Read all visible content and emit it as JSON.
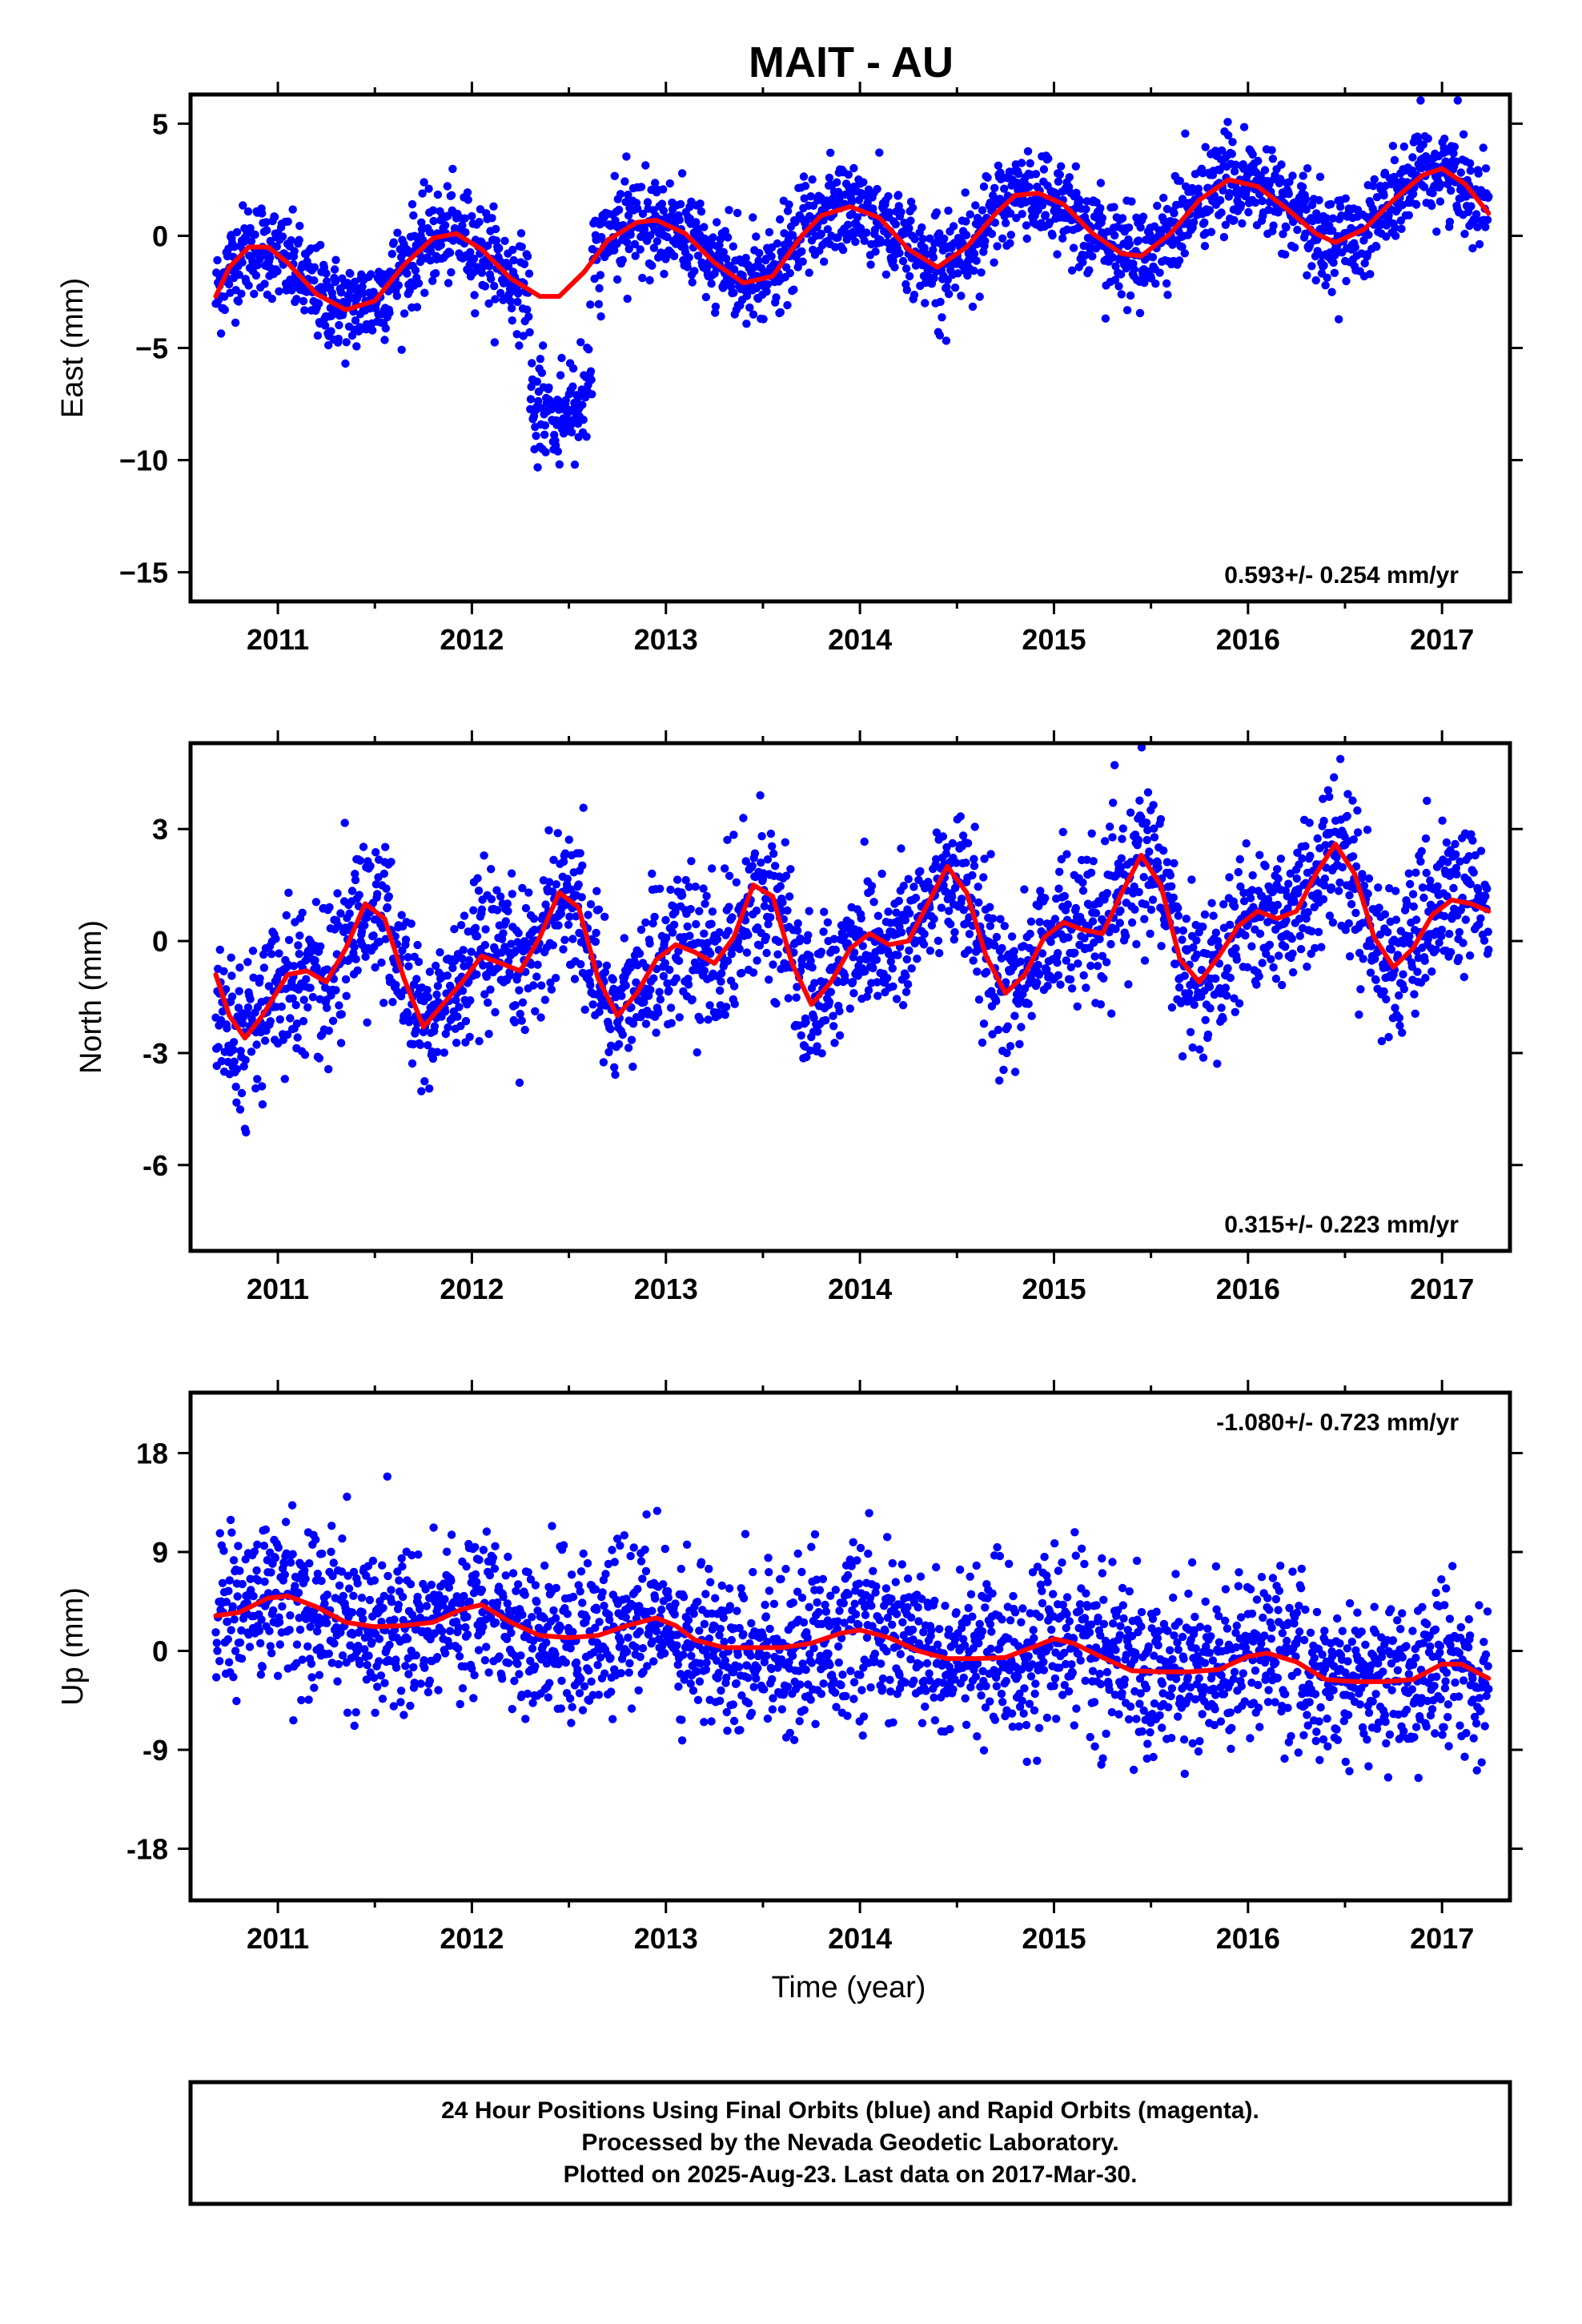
{
  "title": "MAIT - AU",
  "xlabel": "Time (year)",
  "caption": [
    "24 Hour Positions Using Final Orbits (blue) and Rapid Orbits (magenta).",
    "Processed by the Nevada Geodetic Laboratory.",
    "Plotted on 2025-Aug-23. Last data on 2017-Mar-30."
  ],
  "colors": {
    "points": "#0000ff",
    "model": "#ff0000",
    "frame": "#000000"
  },
  "chart_data": [
    {
      "type": "scatter",
      "ylabel": "East (mm)",
      "rate_label": "0.593+/- 0.254 mm/yr",
      "rate_position": "bottom-right",
      "xlim": [
        2010.55,
        2017.35
      ],
      "ylim": [
        -16.3,
        6.3
      ],
      "yticks": [
        5,
        0,
        -5,
        -10,
        -15
      ],
      "ytick_labels": [
        "5",
        "0",
        "−5",
        "−10",
        "−15"
      ],
      "xticks": [
        2011,
        2012,
        2013,
        2014,
        2015,
        2016,
        2017
      ],
      "series": [
        {
          "kind": "points",
          "values": "daily positions 2010.68 to 2017.24"
        },
        {
          "kind": "model",
          "x": [
            2010.68,
            2010.75,
            2010.85,
            2010.95,
            2011.05,
            2011.2,
            2011.35,
            2011.5,
            2011.65,
            2011.8,
            2011.92,
            2012.05,
            2012.2,
            2012.35,
            2012.45,
            2012.58,
            2012.7,
            2012.85,
            2012.95,
            2013.1,
            2013.25,
            2013.4,
            2013.55,
            2013.7,
            2013.8,
            2013.95,
            2014.1,
            2014.25,
            2014.4,
            2014.55,
            2014.7,
            2014.8,
            2014.92,
            2015.05,
            2015.2,
            2015.35,
            2015.45,
            2015.6,
            2015.75,
            2015.9,
            2016.05,
            2016.2,
            2016.35,
            2016.45,
            2016.6,
            2016.75,
            2016.9,
            2017.0,
            2017.12,
            2017.24
          ],
          "y": [
            -2.7,
            -1.4,
            -0.5,
            -0.5,
            -1.2,
            -2.6,
            -3.3,
            -2.9,
            -1.3,
            -0.1,
            0.1,
            -0.6,
            -1.9,
            -2.7,
            -2.7,
            -1.6,
            -0.2,
            0.6,
            0.7,
            0.1,
            -1.2,
            -2.1,
            -1.8,
            0.0,
            0.9,
            1.3,
            0.8,
            -0.6,
            -1.4,
            -0.5,
            1.0,
            1.8,
            1.9,
            1.4,
            0.1,
            -0.8,
            -0.9,
            0.1,
            1.6,
            2.5,
            2.2,
            1.2,
            0.1,
            -0.3,
            0.3,
            1.6,
            2.7,
            3.0,
            2.3,
            1.0
          ]
        }
      ]
    },
    {
      "type": "scatter",
      "ylabel": "North (mm)",
      "rate_label": "0.315+/- 0.223 mm/yr",
      "rate_position": "bottom-right",
      "xlim": [
        2010.55,
        2017.35
      ],
      "ylim": [
        -8.3,
        5.3
      ],
      "yticks": [
        3,
        0,
        -3,
        -6
      ],
      "ytick_labels": [
        "3",
        "0",
        "-3",
        "-6"
      ],
      "xticks": [
        2011,
        2012,
        2013,
        2014,
        2015,
        2016,
        2017
      ],
      "series": [
        {
          "kind": "points",
          "values": "daily positions 2010.68 to 2017.24"
        },
        {
          "kind": "model",
          "x": [
            2010.68,
            2010.75,
            2010.83,
            2010.92,
            2011.05,
            2011.15,
            2011.25,
            2011.35,
            2011.45,
            2011.55,
            2011.65,
            2011.75,
            2011.85,
            2011.95,
            2012.05,
            2012.15,
            2012.25,
            2012.35,
            2012.45,
            2012.55,
            2012.65,
            2012.75,
            2012.85,
            2012.95,
            2013.05,
            2013.15,
            2013.25,
            2013.35,
            2013.45,
            2013.55,
            2013.65,
            2013.75,
            2013.85,
            2013.95,
            2014.05,
            2014.15,
            2014.25,
            2014.35,
            2014.45,
            2014.55,
            2014.65,
            2014.75,
            2014.85,
            2014.95,
            2015.05,
            2015.15,
            2015.25,
            2015.35,
            2015.45,
            2015.55,
            2015.65,
            2015.75,
            2015.85,
            2015.95,
            2016.05,
            2016.15,
            2016.25,
            2016.35,
            2016.45,
            2016.55,
            2016.65,
            2016.75,
            2016.85,
            2016.95,
            2017.05,
            2017.15,
            2017.24
          ],
          "y": [
            -0.9,
            -2.0,
            -2.6,
            -2.0,
            -0.9,
            -0.8,
            -1.1,
            -0.2,
            1.0,
            0.6,
            -1.0,
            -2.3,
            -1.7,
            -1.1,
            -0.4,
            -0.6,
            -0.8,
            0.1,
            1.3,
            0.9,
            -1.0,
            -2.0,
            -1.4,
            -0.5,
            -0.1,
            -0.3,
            -0.6,
            0.1,
            1.5,
            1.2,
            -0.6,
            -1.7,
            -1.1,
            -0.2,
            0.2,
            -0.1,
            0.0,
            1.0,
            2.0,
            1.3,
            -0.4,
            -1.4,
            -0.9,
            0.1,
            0.5,
            0.3,
            0.2,
            1.3,
            2.3,
            1.5,
            -0.5,
            -1.1,
            -0.4,
            0.4,
            0.8,
            0.6,
            0.8,
            1.8,
            2.6,
            1.8,
            0.1,
            -0.7,
            -0.2,
            0.7,
            1.1,
            1.0,
            0.8
          ]
        }
      ]
    },
    {
      "type": "scatter",
      "ylabel": "Up (mm)",
      "rate_label": "-1.080+/- 0.723 mm/yr",
      "rate_position": "top-right",
      "xlim": [
        2010.55,
        2017.35
      ],
      "ylim": [
        -22.7,
        23.5
      ],
      "yticks": [
        18,
        9,
        0,
        -9,
        -18
      ],
      "ytick_labels": [
        "18",
        "9",
        "0",
        "-9",
        "-18"
      ],
      "xticks": [
        2011,
        2012,
        2013,
        2014,
        2015,
        2016,
        2017
      ],
      "series": [
        {
          "kind": "points",
          "values": "daily positions 2010.68 to 2017.24"
        },
        {
          "kind": "model",
          "x": [
            2010.68,
            2010.8,
            2010.95,
            2011.05,
            2011.2,
            2011.35,
            2011.5,
            2011.65,
            2011.8,
            2011.95,
            2012.05,
            2012.2,
            2012.35,
            2012.5,
            2012.65,
            2012.8,
            2012.95,
            2013.05,
            2013.15,
            2013.3,
            2013.45,
            2013.6,
            2013.75,
            2013.9,
            2014.0,
            2014.15,
            2014.3,
            2014.45,
            2014.6,
            2014.75,
            2014.9,
            2015.0,
            2015.1,
            2015.25,
            2015.4,
            2015.55,
            2015.7,
            2015.85,
            2016.0,
            2016.1,
            2016.25,
            2016.4,
            2016.55,
            2016.7,
            2016.85,
            2017.0,
            2017.1,
            2017.24
          ],
          "y": [
            3.2,
            3.5,
            4.8,
            5.0,
            4.0,
            2.6,
            2.2,
            2.3,
            2.6,
            3.8,
            4.2,
            2.6,
            1.4,
            1.2,
            1.4,
            2.3,
            3.0,
            2.3,
            1.0,
            0.3,
            0.3,
            0.3,
            0.7,
            1.6,
            1.9,
            1.2,
            0.0,
            -0.7,
            -0.7,
            -0.6,
            0.4,
            1.1,
            0.7,
            -0.6,
            -1.8,
            -1.9,
            -1.9,
            -1.7,
            -0.5,
            -0.2,
            -1.0,
            -2.6,
            -2.8,
            -2.8,
            -2.6,
            -1.2,
            -1.2,
            -2.5
          ]
        }
      ]
    }
  ]
}
